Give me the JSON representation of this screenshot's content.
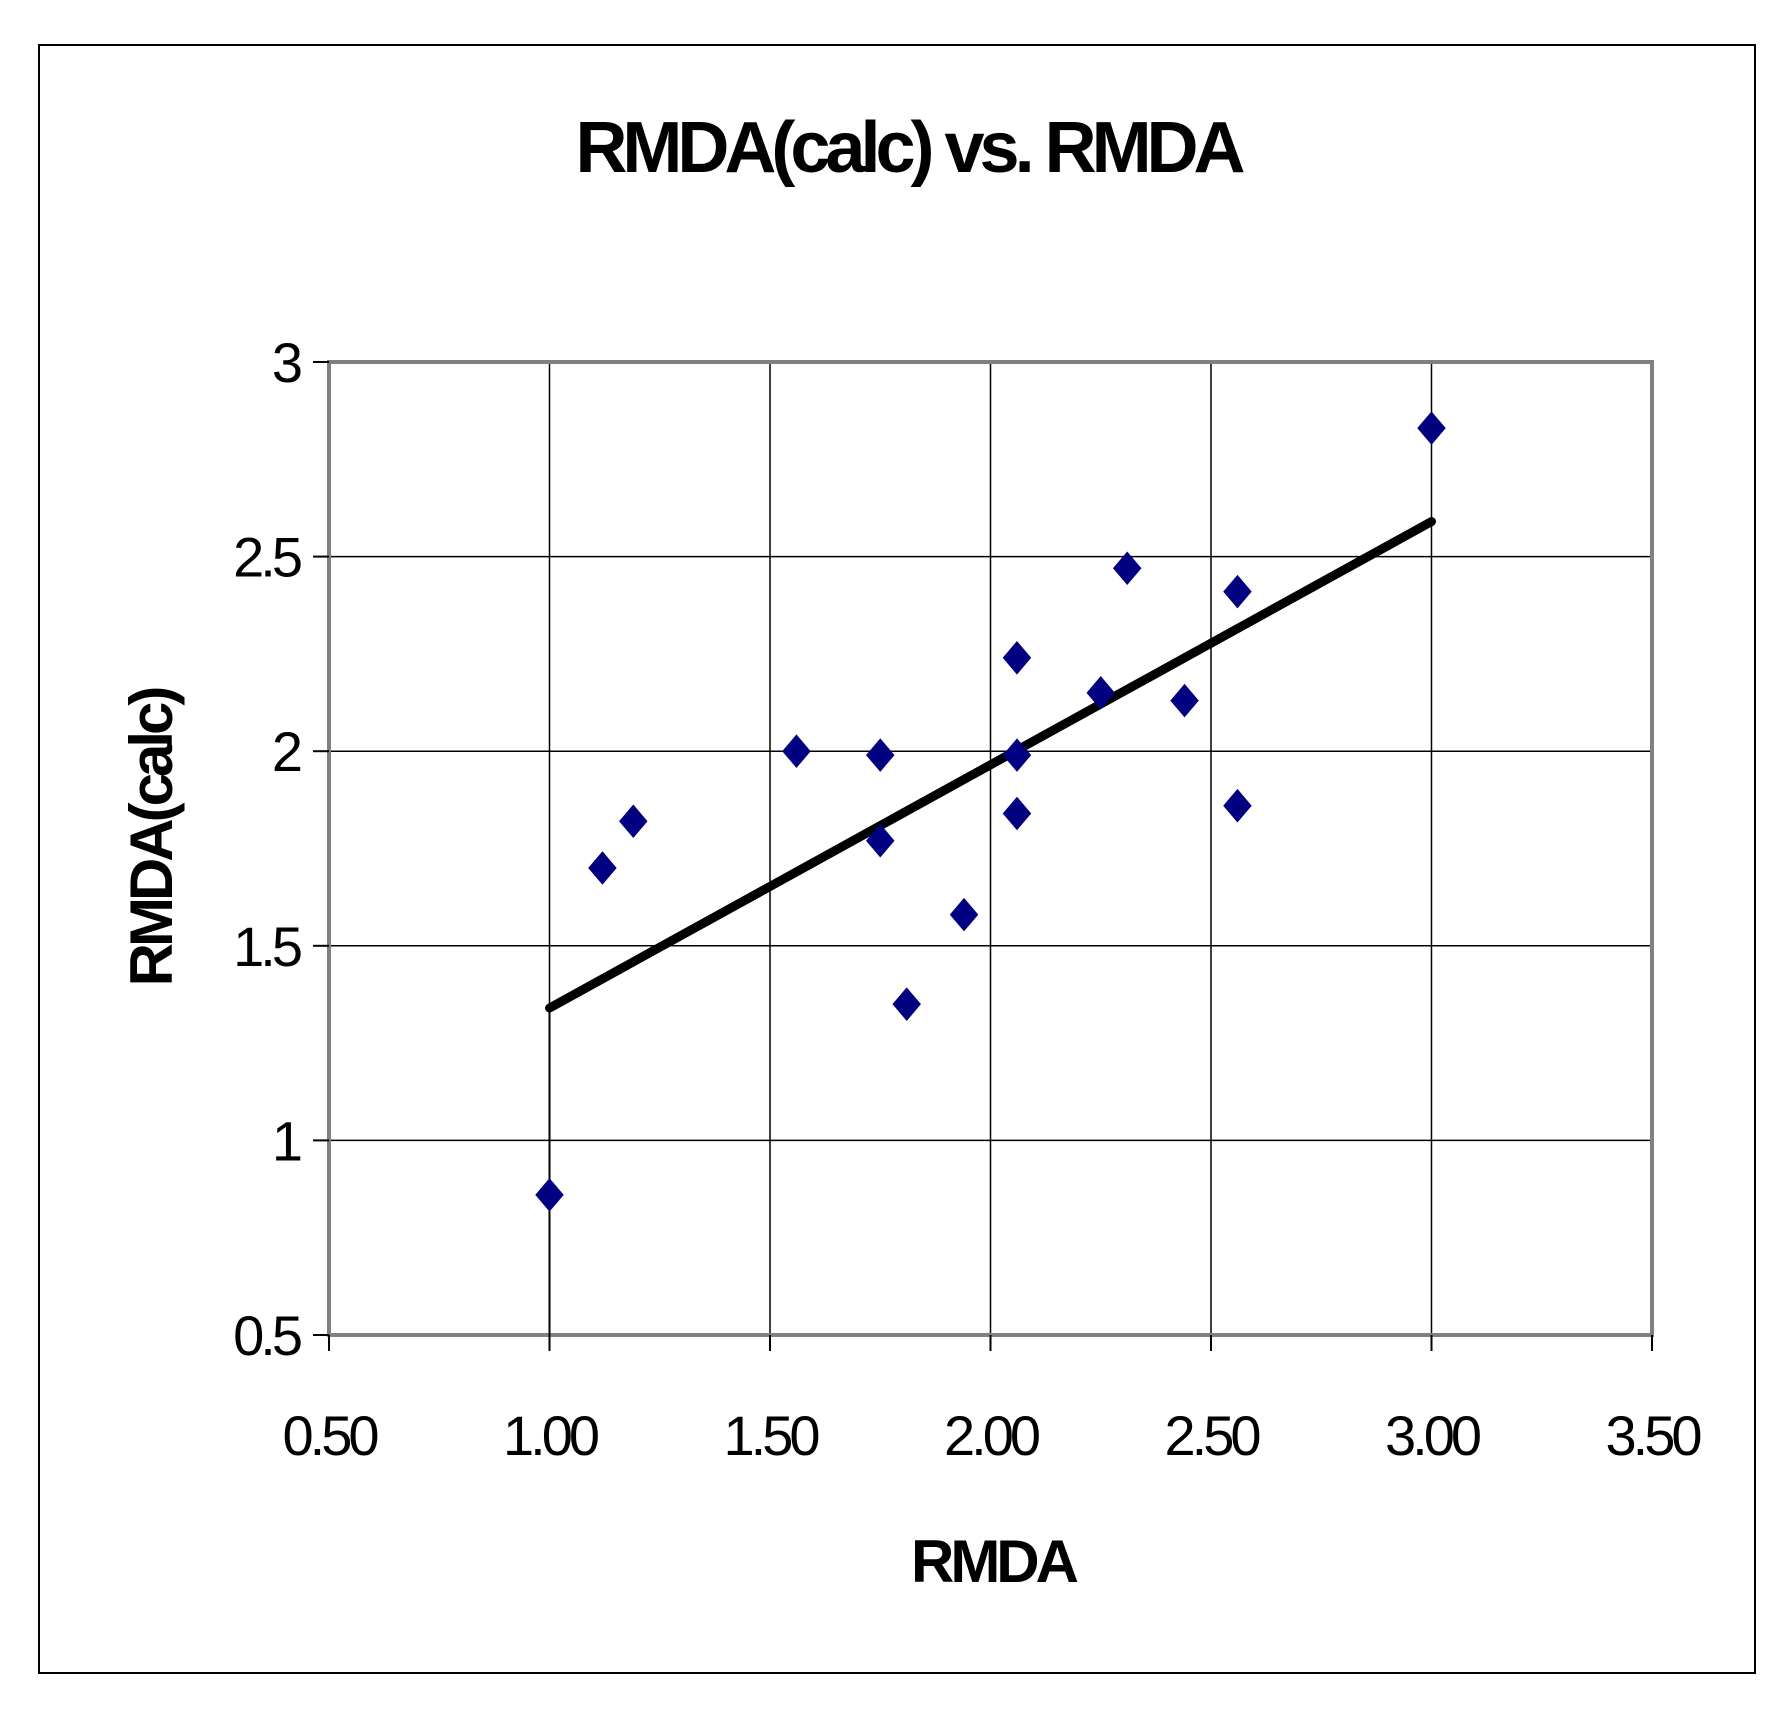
{
  "chart_data": {
    "type": "scatter",
    "title": "RMDA(calc) vs. RMDA",
    "xlabel": "RMDA",
    "ylabel": "RMDA(calc)",
    "xlim": [
      0.5,
      3.5
    ],
    "ylim": [
      0.5,
      3.0
    ],
    "x_ticks": [
      "0.50",
      "1.00",
      "1.50",
      "2.00",
      "2.50",
      "3.00",
      "3.50"
    ],
    "y_ticks": [
      "0.5",
      "1",
      "1.5",
      "2",
      "2.5",
      "3"
    ],
    "x_tick_values": [
      0.5,
      1.0,
      1.5,
      2.0,
      2.5,
      3.0,
      3.5
    ],
    "y_tick_values": [
      0.5,
      1.0,
      1.5,
      2.0,
      2.5,
      3.0
    ],
    "grid": true,
    "marker": "diamond",
    "marker_color": "#000080",
    "trendline_color": "#000000",
    "grid_color": "#000000",
    "plot_border_color": "#808080",
    "points": [
      {
        "x": 1.0,
        "y": 0.86
      },
      {
        "x": 1.12,
        "y": 1.7
      },
      {
        "x": 1.19,
        "y": 1.82
      },
      {
        "x": 1.56,
        "y": 2.0
      },
      {
        "x": 1.75,
        "y": 1.99
      },
      {
        "x": 1.75,
        "y": 1.77
      },
      {
        "x": 1.81,
        "y": 1.35
      },
      {
        "x": 1.94,
        "y": 1.58
      },
      {
        "x": 2.06,
        "y": 2.24
      },
      {
        "x": 2.06,
        "y": 1.99
      },
      {
        "x": 2.06,
        "y": 1.84
      },
      {
        "x": 2.25,
        "y": 2.15
      },
      {
        "x": 2.31,
        "y": 2.47
      },
      {
        "x": 2.44,
        "y": 2.13
      },
      {
        "x": 2.56,
        "y": 2.41
      },
      {
        "x": 2.56,
        "y": 1.86
      },
      {
        "x": 3.0,
        "y": 2.83
      }
    ],
    "trendline": {
      "x": [
        1.0,
        3.0
      ],
      "y": [
        1.34,
        2.59
      ]
    }
  }
}
